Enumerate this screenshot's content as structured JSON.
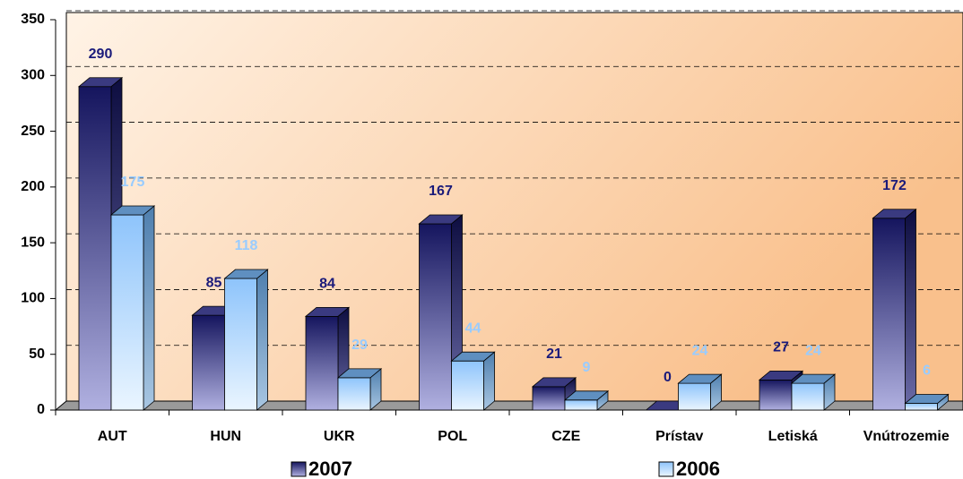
{
  "chart_data": {
    "type": "bar3d",
    "categories": [
      "AUT",
      "HUN",
      "UKR",
      "POL",
      "CZE",
      "Prístav",
      "Letiská",
      "Vnútrozemie"
    ],
    "series": [
      {
        "name": "2007",
        "color": "#1f1f73",
        "values": [
          290,
          85,
          84,
          167,
          21,
          0,
          27,
          172
        ]
      },
      {
        "name": "2006",
        "color": "#99ccff",
        "values": [
          175,
          118,
          29,
          44,
          9,
          24,
          24,
          6
        ]
      }
    ],
    "ylim": [
      0,
      350
    ],
    "yticks": [
      0,
      50,
      100,
      150,
      200,
      250,
      300,
      350
    ],
    "grid": true,
    "legend": "bottom"
  }
}
